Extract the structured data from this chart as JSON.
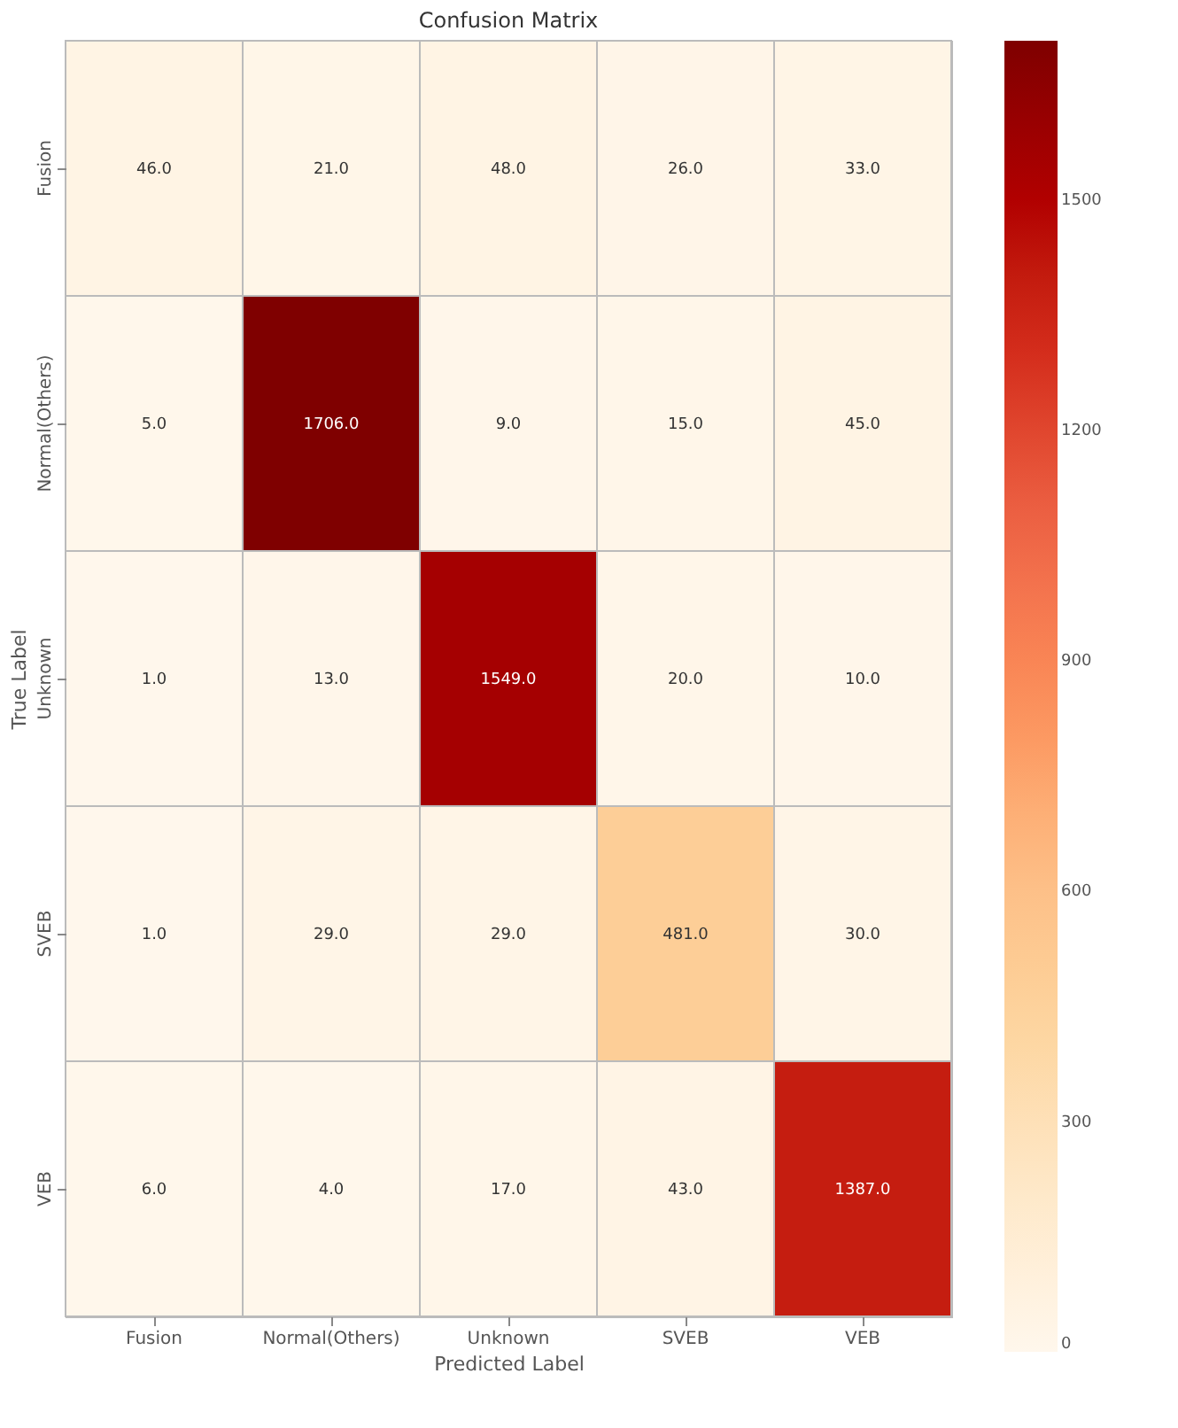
{
  "chart_data": {
    "type": "heatmap",
    "title": "Confusion Matrix",
    "xlabel": "Predicted Label",
    "ylabel": "True Label",
    "categories": [
      "Fusion",
      "Normal(Others)",
      "Unknown",
      "SVEB",
      "VEB"
    ],
    "y_categories": [
      "Fusion",
      "Normal(Others)",
      "Unknown",
      "SVEB",
      "VEB"
    ],
    "cells": [
      [
        46,
        21,
        48,
        26,
        33
      ],
      [
        5,
        1706,
        9,
        15,
        45
      ],
      [
        1,
        13,
        1549,
        20,
        10
      ],
      [
        1,
        29,
        29,
        481,
        30
      ],
      [
        6,
        4,
        17,
        43,
        1387
      ]
    ],
    "cell_labels": [
      [
        "46.0",
        "21.0",
        "48.0",
        "26.0",
        "33.0"
      ],
      [
        "5.0",
        "1706.0",
        "9.0",
        "15.0",
        "45.0"
      ],
      [
        "1.0",
        "13.0",
        "1549.0",
        "20.0",
        "10.0"
      ],
      [
        "1.0",
        "29.0",
        "29.0",
        "481.0",
        "30.0"
      ],
      [
        "6.0",
        "4.0",
        "17.0",
        "43.0",
        "1387.0"
      ]
    ],
    "clim": [
      0,
      1706
    ],
    "cticks": [
      0,
      300,
      600,
      900,
      1200,
      1500
    ]
  }
}
